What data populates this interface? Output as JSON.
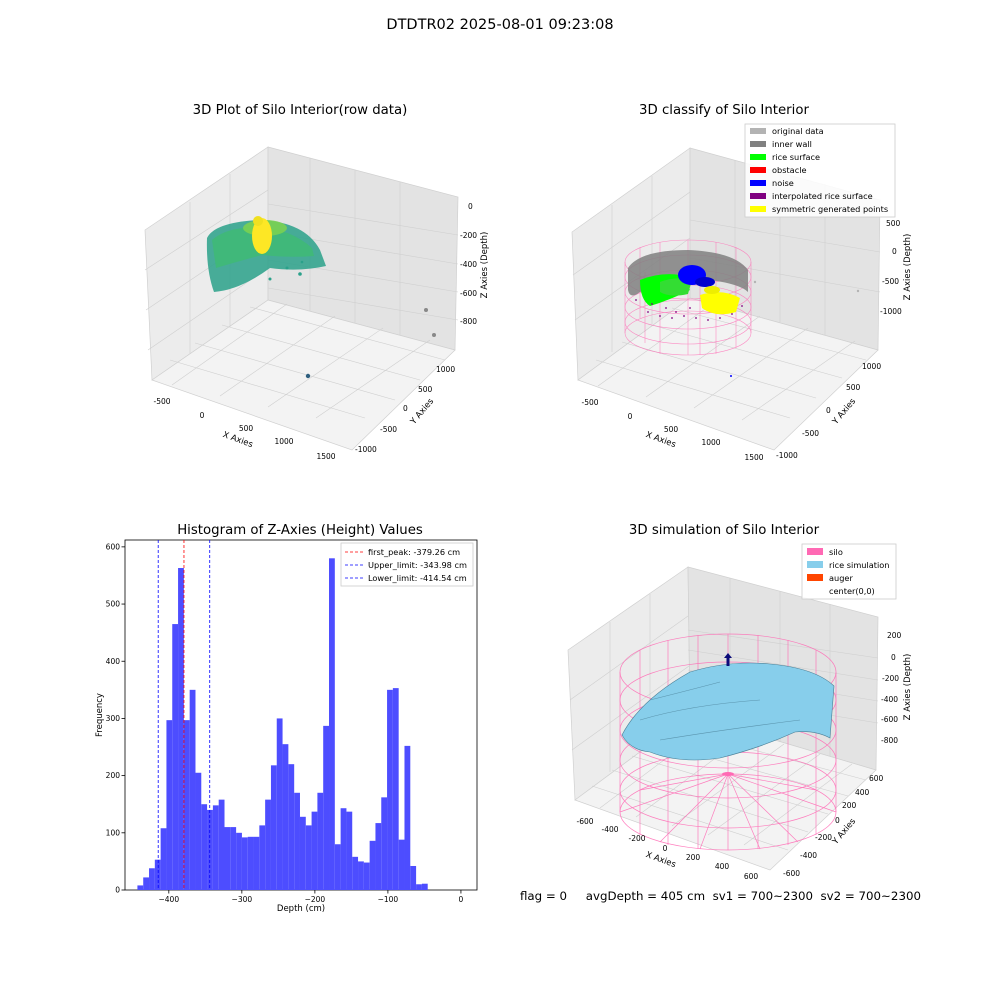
{
  "suptitle": "DTDTR02 2025-08-01 09:23:08",
  "footer": {
    "flag": "flag = 0",
    "avg_depth": "avgDepth = 405 cm",
    "sv1": "sv1 = 700~2300",
    "sv2": "sv2 = 700~2300"
  },
  "panels": {
    "raw": {
      "title": "3D Plot of Silo Interior(row data)",
      "xlabel": "X Axies",
      "ylabel": "Y Axies",
      "zlabel": "Z Axies (Depth)",
      "xticks": [
        "-500",
        "0",
        "500",
        "1000",
        "1500"
      ],
      "yticks": [
        "-1000",
        "-500",
        "0",
        "500",
        "1000"
      ],
      "zticks": [
        "0",
        "-200",
        "-400",
        "-600",
        "-800"
      ]
    },
    "classify": {
      "title": "3D classify of Silo Interior",
      "xlabel": "X Axies",
      "ylabel": "Y Axies",
      "zlabel": "Z Axies (Depth)",
      "xticks": [
        "-500",
        "0",
        "500",
        "1000",
        "1500"
      ],
      "yticks": [
        "-1000",
        "-500",
        "0",
        "500",
        "1000"
      ],
      "zticks": [
        "500",
        "0",
        "-500",
        "-1000"
      ],
      "legend": [
        {
          "label": "original data",
          "color": "#b3b3b3"
        },
        {
          "label": "inner wall",
          "color": "#808080"
        },
        {
          "label": "rice surface",
          "color": "#00ff00"
        },
        {
          "label": "obstacle",
          "color": "#ff0000"
        },
        {
          "label": "noise",
          "color": "#0000ff"
        },
        {
          "label": "interpolated rice surface",
          "color": "#800080"
        },
        {
          "label": "symmetric generated points",
          "color": "#ffff00"
        }
      ]
    },
    "simulation": {
      "title": "3D simulation of Silo Interior",
      "xlabel": "X Axies",
      "ylabel": "Y Axies",
      "zlabel": "Z Axies (Depth)",
      "xticks": [
        "-600",
        "-400",
        "-200",
        "0",
        "200",
        "400",
        "600"
      ],
      "yticks": [
        "-600",
        "-400",
        "-200",
        "0",
        "200",
        "400",
        "600"
      ],
      "zticks": [
        "200",
        "0",
        "-200",
        "-400",
        "-600",
        "-800"
      ],
      "legend": [
        {
          "label": "silo",
          "color": "#ff69b4"
        },
        {
          "label": "rice simulation",
          "color": "#87ceeb"
        },
        {
          "label": "auger",
          "color": "#ff4500"
        },
        {
          "label": "center(0,0)",
          "color": ""
        }
      ]
    }
  },
  "chart_data": {
    "type": "bar",
    "title": "Histogram of Z-Axies (Height) Values",
    "xlabel": "Depth (cm)",
    "ylabel": "Frequency",
    "xlim": [
      -460,
      22
    ],
    "ylim": [
      0,
      612
    ],
    "xticks": [
      -400,
      -300,
      -200,
      -100,
      0
    ],
    "yticks": [
      0,
      100,
      200,
      300,
      400,
      500,
      600
    ],
    "bar_color": "#4d4dff",
    "bin_start": -443,
    "bin_width": 7.95,
    "values": [
      8,
      22,
      38,
      53,
      108,
      297,
      465,
      563,
      297,
      350,
      205,
      150,
      140,
      148,
      158,
      110,
      110,
      100,
      92,
      93,
      93,
      113,
      158,
      218,
      300,
      255,
      220,
      170,
      128,
      113,
      137,
      170,
      287,
      580,
      80,
      143,
      137,
      58,
      50,
      48,
      86,
      117,
      162,
      350,
      353,
      88,
      252,
      42,
      10,
      11
    ],
    "lines": [
      {
        "label": "first_peak: -379.26 cm",
        "value": -379.26,
        "color": "#ff0000"
      },
      {
        "label": "Upper_limit: -343.98 cm",
        "value": -343.98,
        "color": "#0000ff"
      },
      {
        "label": "Lower_limit: -414.54 cm",
        "value": -414.54,
        "color": "#0000ff"
      }
    ],
    "legend_position": "upper right"
  }
}
